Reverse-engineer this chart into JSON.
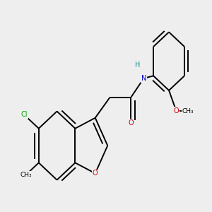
{
  "bg_color": "#eeeeee",
  "bond_color": "#000000",
  "bond_width": 1.4,
  "label_fontsize": 7.0,
  "atoms": {
    "O_furan": {
      "color": "#cc0000",
      "label": "O"
    },
    "O_carbonyl": {
      "color": "#cc0000",
      "label": "O"
    },
    "O_methoxy": {
      "color": "#cc0000",
      "label": "O"
    },
    "N": {
      "color": "#0000cc",
      "label": "N"
    },
    "H_N": {
      "color": "#008888",
      "label": "H"
    },
    "Cl": {
      "color": "#00aa00",
      "label": "Cl"
    },
    "Me_benz": {
      "color": "#000000",
      "label": "CH₃"
    },
    "Me_meth": {
      "color": "#000000",
      "label": "CH₃"
    }
  }
}
